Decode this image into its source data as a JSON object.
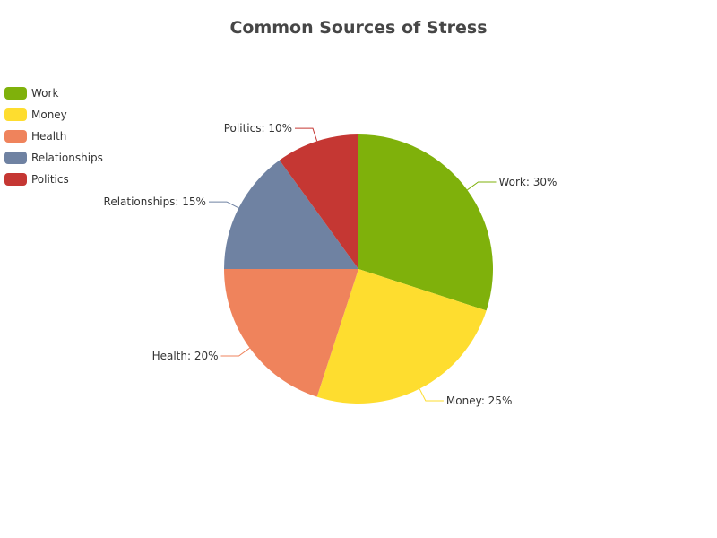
{
  "chart_data": {
    "type": "pie",
    "title": "Common Sources of Stress",
    "categories": [
      "Work",
      "Money",
      "Health",
      "Relationships",
      "Politics"
    ],
    "values": [
      30,
      25,
      20,
      15,
      10
    ],
    "colors": [
      "#7fb10b",
      "#fedd2f",
      "#ef835c",
      "#6f82a2",
      "#c53733"
    ],
    "data_labels": [
      "Work: 30%",
      "Money: 25%",
      "Health: 20%",
      "Relationships: 15%",
      "Politics: 10%"
    ],
    "legend_position": "top-left",
    "start_angle": "12 o'clock",
    "direction": "clockwise"
  }
}
